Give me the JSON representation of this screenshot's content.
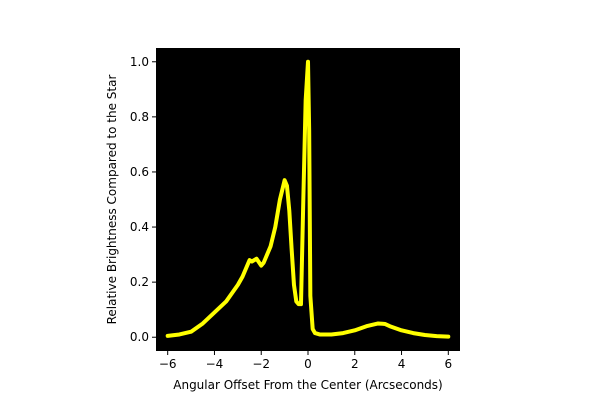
{
  "chart_data": {
    "type": "line",
    "title": "",
    "xlabel": "Angular Offset From the Center (Arcseconds)",
    "ylabel": "Relative Brightness Compared to the Star",
    "xlim": [
      -6.5,
      6.5
    ],
    "ylim": [
      -0.05,
      1.05
    ],
    "xticks": [
      -6,
      -4,
      -2,
      0,
      2,
      4,
      6
    ],
    "xtick_labels": [
      "−6",
      "−4",
      "−2",
      "0",
      "2",
      "4",
      "6"
    ],
    "yticks": [
      0.0,
      0.2,
      0.4,
      0.6,
      0.8,
      1.0
    ],
    "ytick_labels": [
      "0.0",
      "0.2",
      "0.4",
      "0.6",
      "0.8",
      "1.0"
    ],
    "grid": false,
    "legend": null,
    "background_color": "#000000",
    "series": [
      {
        "color": "#ffff00",
        "x": [
          -6.0,
          -5.5,
          -5.0,
          -4.5,
          -4.0,
          -3.5,
          -3.0,
          -2.8,
          -2.6,
          -2.5,
          -2.4,
          -2.3,
          -2.2,
          -2.0,
          -1.9,
          -1.8,
          -1.6,
          -1.4,
          -1.2,
          -1.0,
          -0.9,
          -0.8,
          -0.7,
          -0.6,
          -0.5,
          -0.4,
          -0.3,
          -0.2,
          -0.1,
          0.0,
          0.05,
          0.1,
          0.2,
          0.3,
          0.5,
          1.0,
          1.5,
          2.0,
          2.5,
          3.0,
          3.3,
          3.5,
          4.0,
          4.5,
          5.0,
          5.5,
          6.0
        ],
        "y": [
          0.005,
          0.01,
          0.02,
          0.05,
          0.09,
          0.13,
          0.19,
          0.22,
          0.26,
          0.28,
          0.275,
          0.28,
          0.285,
          0.26,
          0.27,
          0.29,
          0.33,
          0.4,
          0.5,
          0.57,
          0.55,
          0.46,
          0.32,
          0.19,
          0.13,
          0.12,
          0.12,
          0.5,
          0.86,
          1.0,
          0.75,
          0.15,
          0.03,
          0.015,
          0.01,
          0.01,
          0.015,
          0.025,
          0.04,
          0.05,
          0.048,
          0.04,
          0.025,
          0.015,
          0.008,
          0.004,
          0.002
        ]
      }
    ]
  }
}
